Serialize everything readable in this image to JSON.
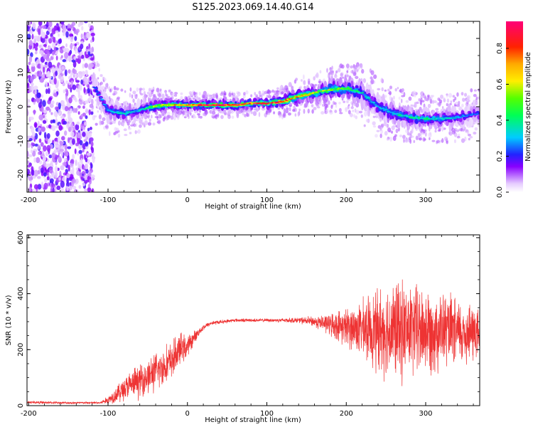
{
  "page_title": "S125.2023.069.14.40.G14",
  "chart_data": [
    {
      "type": "heatmap",
      "xlabel": "Height of straight line (km)",
      "ylabel": "Frequency (Hz)",
      "xlim": [
        -202,
        368
      ],
      "ylim": [
        -25,
        25
      ],
      "x_ticks": [
        -200,
        -100,
        0,
        100,
        200,
        300
      ],
      "y_ticks": [
        -20,
        -10,
        0,
        10,
        20
      ],
      "grid": false,
      "colorbar": {
        "label": "Normalized spectral amplitude",
        "range": [
          0,
          0.95
        ],
        "ticks": [
          0.0,
          0.2,
          0.4,
          0.6,
          0.8
        ],
        "tick_labels": [
          "0.0",
          "0.2",
          "0.4",
          "0.6",
          "0.8"
        ]
      },
      "noise_region": {
        "x": [
          -202,
          -118
        ],
        "y": [
          -25,
          25
        ]
      },
      "ridge": {
        "x": [
          -118,
          -100,
          -80,
          -60,
          -45,
          -30,
          -10,
          0,
          20,
          40,
          60,
          80,
          100,
          120,
          140,
          160,
          180,
          200,
          220,
          240,
          260,
          280,
          300,
          320,
          340,
          368
        ],
        "y": [
          6,
          -1,
          -2,
          -1,
          0,
          0.5,
          0.5,
          0.5,
          0.5,
          0.5,
          0.5,
          1,
          1,
          1.5,
          3,
          4,
          5,
          5.5,
          4,
          0,
          -2,
          -3,
          -3.5,
          -3.5,
          -3,
          -2
        ],
        "width_hz": [
          6,
          4,
          4,
          3.5,
          3,
          2.5,
          2,
          2,
          2,
          2,
          2,
          2,
          2,
          2.5,
          3,
          3,
          4,
          4,
          5,
          5,
          4.5,
          4,
          4,
          4,
          4,
          4
        ],
        "peak_amplitude": [
          0.2,
          0.3,
          0.35,
          0.3,
          0.5,
          0.6,
          0.75,
          0.8,
          0.9,
          0.9,
          0.85,
          0.8,
          0.9,
          0.8,
          0.7,
          0.6,
          0.55,
          0.5,
          0.35,
          0.3,
          0.35,
          0.4,
          0.4,
          0.35,
          0.3,
          0.25
        ]
      }
    },
    {
      "type": "line",
      "xlabel": "Height of straight line (km)",
      "ylabel": "SNR (10 * v/v)",
      "xlim": [
        -202,
        368
      ],
      "ylim": [
        0,
        610
      ],
      "x_ticks": [
        -200,
        -100,
        0,
        100,
        200,
        300
      ],
      "y_ticks": [
        0,
        200,
        400,
        600
      ],
      "grid": false,
      "series": [
        {
          "color": "#ee3333",
          "envelope_x": [
            -202,
            -150,
            -110,
            -100,
            -80,
            -60,
            -40,
            -20,
            -10,
            0,
            10,
            20,
            30,
            60,
            100,
            140,
            160,
            180,
            200,
            220,
            240,
            260,
            280,
            300,
            320,
            340,
            368
          ],
          "envelope_mean": [
            12,
            10,
            10,
            20,
            60,
            90,
            120,
            160,
            200,
            210,
            250,
            280,
            295,
            305,
            305,
            305,
            300,
            290,
            280,
            275,
            270,
            270,
            270,
            270,
            270,
            260,
            260
          ],
          "envelope_spread": [
            5,
            4,
            4,
            15,
            45,
            60,
            70,
            70,
            60,
            40,
            20,
            10,
            8,
            6,
            6,
            10,
            20,
            40,
            70,
            100,
            150,
            180,
            170,
            160,
            140,
            120,
            110
          ]
        }
      ]
    }
  ]
}
